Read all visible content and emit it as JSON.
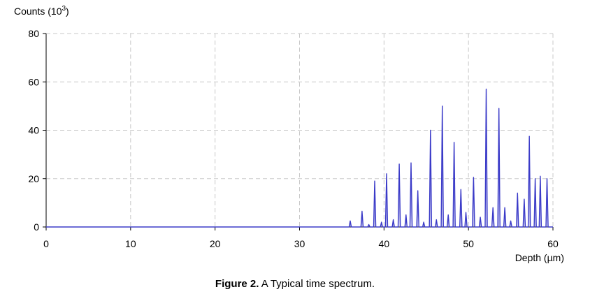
{
  "chart_data": {
    "type": "line",
    "ylabel": "Counts (10",
    "ylabel_exp": "3",
    "ylabel_close": ")",
    "xlabel": "Depth (µm)",
    "xlim": [
      0,
      60
    ],
    "ylim": [
      0,
      80
    ],
    "xticks": [
      "0",
      "10",
      "20",
      "30",
      "40",
      "50",
      "60"
    ],
    "yticks": [
      "0",
      "20",
      "40",
      "60",
      "80"
    ],
    "grid": true,
    "line_color": "#3b3bc8",
    "series": [
      {
        "peaks": [
          {
            "x": 36.0,
            "y": 2.5
          },
          {
            "x": 37.4,
            "y": 6.5
          },
          {
            "x": 38.2,
            "y": 1.0
          },
          {
            "x": 38.9,
            "y": 19.0
          },
          {
            "x": 39.7,
            "y": 2.0
          },
          {
            "x": 40.3,
            "y": 22.0
          },
          {
            "x": 41.1,
            "y": 3.0
          },
          {
            "x": 41.8,
            "y": 26.0
          },
          {
            "x": 42.6,
            "y": 5.0
          },
          {
            "x": 43.2,
            "y": 26.5
          },
          {
            "x": 44.0,
            "y": 15.0
          },
          {
            "x": 44.7,
            "y": 2.0
          },
          {
            "x": 45.5,
            "y": 40.0
          },
          {
            "x": 46.2,
            "y": 3.0
          },
          {
            "x": 46.9,
            "y": 50.0
          },
          {
            "x": 47.6,
            "y": 5.0
          },
          {
            "x": 48.3,
            "y": 35.0
          },
          {
            "x": 49.1,
            "y": 15.5
          },
          {
            "x": 49.7,
            "y": 6.0
          },
          {
            "x": 50.6,
            "y": 20.5
          },
          {
            "x": 51.4,
            "y": 4.0
          },
          {
            "x": 52.1,
            "y": 57.0
          },
          {
            "x": 52.9,
            "y": 8.0
          },
          {
            "x": 53.6,
            "y": 49.0
          },
          {
            "x": 54.3,
            "y": 8.0
          },
          {
            "x": 55.0,
            "y": 2.5
          },
          {
            "x": 55.8,
            "y": 14.0
          },
          {
            "x": 56.6,
            "y": 11.5
          },
          {
            "x": 57.2,
            "y": 37.5
          },
          {
            "x": 57.9,
            "y": 20.0
          },
          {
            "x": 58.5,
            "y": 21.0
          },
          {
            "x": 59.3,
            "y": 20.0
          }
        ]
      }
    ]
  },
  "caption": {
    "label": "Figure 2.",
    "text": " A Typical time spectrum."
  }
}
